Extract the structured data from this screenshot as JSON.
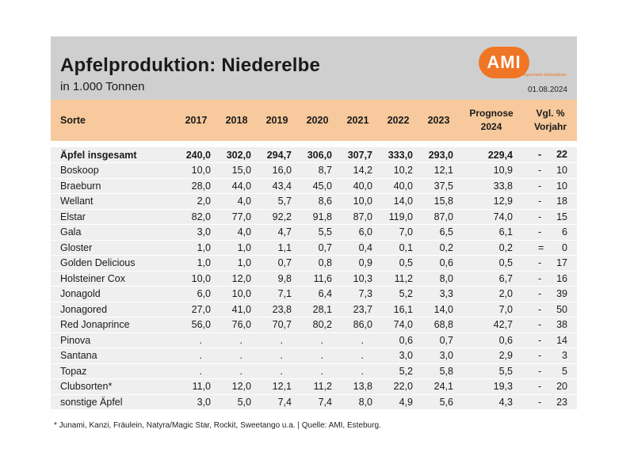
{
  "header": {
    "title": "Apfelproduktion: Niederelbe",
    "subtitle": "in 1.000 Tonnen",
    "logo_text": "AMI",
    "logo_tagline": "Agrarmarkt Informations",
    "date": "01.08.2024"
  },
  "columns": {
    "sorte": "Sorte",
    "years": [
      "2017",
      "2018",
      "2019",
      "2020",
      "2021",
      "2022",
      "2023"
    ],
    "prognose_line1": "Prognose",
    "prognose_line2": "2024",
    "vgl_line1": "Vgl. %",
    "vgl_line2": "Vorjahr"
  },
  "rows": [
    {
      "sorte": "Äpfel insgesamt",
      "values": [
        "240,0",
        "302,0",
        "294,7",
        "306,0",
        "307,7",
        "333,0",
        "293,0"
      ],
      "prognose": "229,4",
      "sym": "-",
      "vgl": "22"
    },
    {
      "sorte": "Boskoop",
      "values": [
        "10,0",
        "15,0",
        "16,0",
        "8,7",
        "14,2",
        "10,2",
        "12,1"
      ],
      "prognose": "10,9",
      "sym": "-",
      "vgl": "10"
    },
    {
      "sorte": "Braeburn",
      "values": [
        "28,0",
        "44,0",
        "43,4",
        "45,0",
        "40,0",
        "40,0",
        "37,5"
      ],
      "prognose": "33,8",
      "sym": "-",
      "vgl": "10"
    },
    {
      "sorte": "Wellant",
      "values": [
        "2,0",
        "4,0",
        "5,7",
        "8,6",
        "10,0",
        "14,0",
        "15,8"
      ],
      "prognose": "12,9",
      "sym": "-",
      "vgl": "18"
    },
    {
      "sorte": "Elstar",
      "values": [
        "82,0",
        "77,0",
        "92,2",
        "91,8",
        "87,0",
        "119,0",
        "87,0"
      ],
      "prognose": "74,0",
      "sym": "-",
      "vgl": "15"
    },
    {
      "sorte": "Gala",
      "values": [
        "3,0",
        "4,0",
        "4,7",
        "5,5",
        "6,0",
        "7,0",
        "6,5"
      ],
      "prognose": "6,1",
      "sym": "-",
      "vgl": "6"
    },
    {
      "sorte": "Gloster",
      "values": [
        "1,0",
        "1,0",
        "1,1",
        "0,7",
        "0,4",
        "0,1",
        "0,2"
      ],
      "prognose": "0,2",
      "sym": "=",
      "vgl": "0"
    },
    {
      "sorte": "Golden Delicious",
      "values": [
        "1,0",
        "1,0",
        "0,7",
        "0,8",
        "0,9",
        "0,5",
        "0,6"
      ],
      "prognose": "0,5",
      "sym": "-",
      "vgl": "17"
    },
    {
      "sorte": "Holsteiner Cox",
      "values": [
        "10,0",
        "12,0",
        "9,8",
        "11,6",
        "10,3",
        "11,2",
        "8,0"
      ],
      "prognose": "6,7",
      "sym": "-",
      "vgl": "16"
    },
    {
      "sorte": "Jonagold",
      "values": [
        "6,0",
        "10,0",
        "7,1",
        "6,4",
        "7,3",
        "5,2",
        "3,3"
      ],
      "prognose": "2,0",
      "sym": "-",
      "vgl": "39"
    },
    {
      "sorte": "Jonagored",
      "values": [
        "27,0",
        "41,0",
        "23,8",
        "28,1",
        "23,7",
        "16,1",
        "14,0"
      ],
      "prognose": "7,0",
      "sym": "-",
      "vgl": "50"
    },
    {
      "sorte": "Red Jonaprince",
      "values": [
        "56,0",
        "76,0",
        "70,7",
        "80,2",
        "86,0",
        "74,0",
        "68,8"
      ],
      "prognose": "42,7",
      "sym": "-",
      "vgl": "38"
    },
    {
      "sorte": "Pinova",
      "values": [
        ".",
        ".",
        ".",
        ".",
        ".",
        "0,6",
        "0,7"
      ],
      "prognose": "0,6",
      "sym": "-",
      "vgl": "14"
    },
    {
      "sorte": "Santana",
      "values": [
        ".",
        ".",
        ".",
        ".",
        ".",
        "3,0",
        "3,0"
      ],
      "prognose": "2,9",
      "sym": "-",
      "vgl": "3"
    },
    {
      "sorte": "Topaz",
      "values": [
        ".",
        ".",
        ".",
        ".",
        ".",
        "5,2",
        "5,8"
      ],
      "prognose": "5,5",
      "sym": "-",
      "vgl": "5"
    },
    {
      "sorte": "Clubsorten*",
      "values": [
        "11,0",
        "12,0",
        "12,1",
        "11,2",
        "13,8",
        "22,0",
        "24,1"
      ],
      "prognose": "19,3",
      "sym": "-",
      "vgl": "20"
    },
    {
      "sorte": "sonstige Äpfel",
      "values": [
        "3,0",
        "5,0",
        "7,4",
        "7,4",
        "8,0",
        "4,9",
        "5,6"
      ],
      "prognose": "4,3",
      "sym": "-",
      "vgl": "23"
    }
  ],
  "footnote": "* Junami, Kanzi, Fräulein, Natyra/Magic Star, Rockit, Sweetango u.a.  |  Quelle: AMI, Esteburg.",
  "colors": {
    "header_band": "#cfcfcf",
    "column_header": "#f7c99c",
    "row_bg": "#efefef",
    "logo": "#f07524"
  }
}
